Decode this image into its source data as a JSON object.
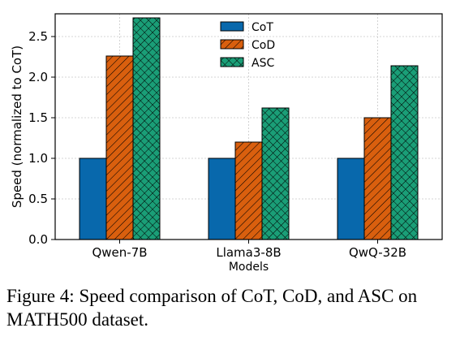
{
  "chart_data": {
    "type": "bar",
    "categories": [
      "Qwen-7B",
      "Llama3-8B",
      "QwQ-32B"
    ],
    "series": [
      {
        "name": "CoT",
        "values": [
          1.0,
          1.0,
          1.0
        ],
        "color": "#0868ac",
        "hatch": "none"
      },
      {
        "name": "CoD",
        "values": [
          2.26,
          1.2,
          1.5
        ],
        "color": "#d95f0e",
        "hatch": "diagonal"
      },
      {
        "name": "ASC",
        "values": [
          2.73,
          1.62,
          2.14
        ],
        "color": "#1a9e77",
        "hatch": "crosshatch"
      }
    ],
    "xlabel": "Models",
    "ylabel": "Speed (normalized to CoT)",
    "ylim": [
      0,
      2.78
    ],
    "yticks": [
      "0.0",
      "0.5",
      "1.0",
      "1.5",
      "2.0",
      "2.5"
    ],
    "grid": true,
    "legend_position": "top-center"
  },
  "caption": "Figure 4: Speed comparison of CoT, CoD, and ASC on MATH500 dataset."
}
